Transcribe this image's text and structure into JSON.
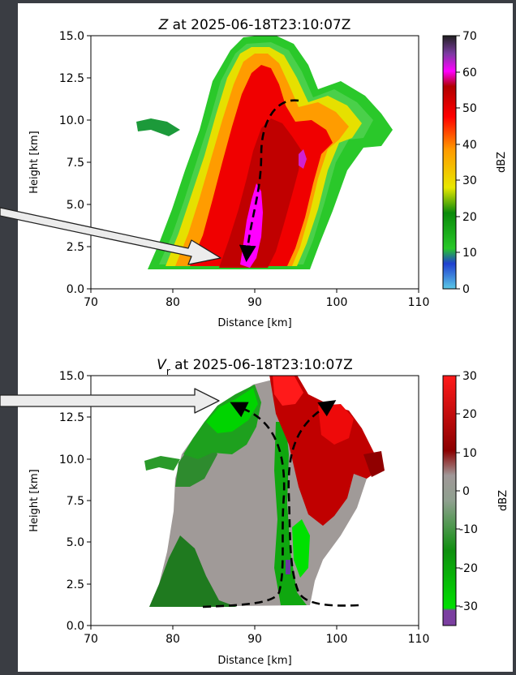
{
  "chart_data": [
    {
      "type": "heatmap",
      "title_var": "Z",
      "title_rest": " at 2025-06-18T23:10:07Z",
      "xlabel": "Distance [km]",
      "ylabel": "Height [km]",
      "xlim": [
        70,
        110
      ],
      "ylim": [
        0.0,
        15.0
      ],
      "xticks": [
        "70",
        "80",
        "90",
        "100",
        "110"
      ],
      "yticks": [
        "0.0",
        "2.5",
        "5.0",
        "7.5",
        "10.0",
        "12.5",
        "15.0"
      ],
      "colorbar_label": "dBZ",
      "colorbar_ticks": [
        "0",
        "10",
        "20",
        "30",
        "40",
        "50",
        "60",
        "70"
      ],
      "colorbar_range": [
        0,
        70
      ],
      "colormap": [
        "#5bc8e6",
        "#1f3fd0",
        "#28c828",
        "#0a8a0a",
        "#e8e800",
        "#ff9a00",
        "#ff0000",
        "#b00000",
        "#ff00ff",
        "#7a3aa0",
        "#202020"
      ]
    },
    {
      "type": "heatmap",
      "title_var": "V",
      "title_sub": "r",
      "title_rest": " at 2025-06-18T23:10:07Z",
      "xlabel": "Distance [km]",
      "ylabel": "Height [km]",
      "xlim": [
        70,
        110
      ],
      "ylim": [
        0.0,
        15.0
      ],
      "xticks": [
        "70",
        "80",
        "90",
        "100",
        "110"
      ],
      "yticks": [
        "0.0",
        "2.5",
        "5.0",
        "7.5",
        "10.0",
        "12.5",
        "15.0"
      ],
      "colorbar_label": "dBZ",
      "colorbar_ticks": [
        "30",
        "20",
        "10",
        "0",
        "-10",
        "-20",
        "-30"
      ],
      "colorbar_range": [
        -35,
        30
      ],
      "colormap": [
        "#7b3fa0",
        "#00e000",
        "#0f8f0f",
        "#9aa69a",
        "#a09898",
        "#8b0000",
        "#ff1a1a"
      ]
    }
  ]
}
